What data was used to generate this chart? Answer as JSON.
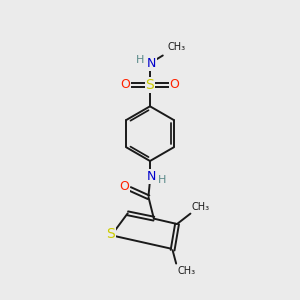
{
  "bg_color": "#ebebeb",
  "bond_color": "#1a1a1a",
  "S_color": "#cccc00",
  "N_color": "#0000cc",
  "O_color": "#ff2200",
  "H_color": "#5a8a8a",
  "font_size": 8,
  "bond_width": 1.4,
  "methyl_font_size": 7,
  "xlim": [
    0,
    10
  ],
  "ylim": [
    0,
    10
  ]
}
